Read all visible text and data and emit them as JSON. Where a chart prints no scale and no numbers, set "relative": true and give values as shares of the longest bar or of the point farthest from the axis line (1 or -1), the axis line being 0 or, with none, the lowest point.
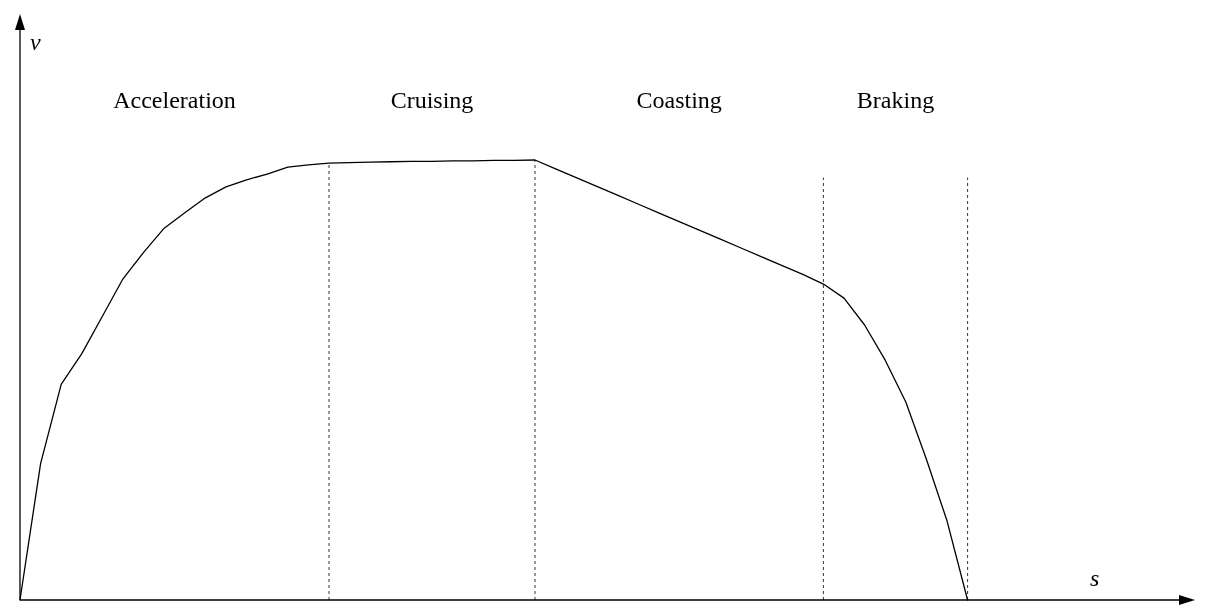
{
  "chart_data": {
    "type": "line",
    "relative": true,
    "xlabel": "s",
    "ylabel": "v",
    "categories": [
      null,
      null,
      null,
      null,
      null,
      null,
      null,
      null,
      null,
      null,
      null,
      null,
      null,
      null,
      null,
      null,
      null,
      null,
      null,
      null,
      null,
      null,
      null,
      null,
      null,
      null,
      null,
      null,
      null,
      null,
      null,
      null,
      null,
      null,
      null,
      null,
      null,
      null,
      null,
      null,
      null,
      null,
      null,
      null,
      null,
      null,
      null,
      null,
      null,
      null,
      null,
      null,
      null,
      null,
      null,
      null,
      null,
      null
    ],
    "series": [
      {
        "color": "#000000",
        "values": [
          0,
          0.31,
          0.49,
          0.56,
          0.645,
          0.73,
          0.79,
          0.845,
          0.88,
          0.914,
          0.939,
          0.955,
          0.968,
          0.984,
          0.989,
          0.993,
          0.994,
          0.995,
          0.996,
          0.997,
          0.997,
          0.998,
          0.998,
          0.999,
          0.999,
          1.0,
          0.98,
          0.96,
          0.94,
          0.92,
          0.9,
          0.88,
          0.86,
          0.84,
          0.82,
          0.8,
          0.78,
          0.76,
          0.74,
          0.718,
          0.686,
          0.625,
          0.545,
          0.45,
          0.32,
          0.18,
          0,
          null,
          null,
          null,
          null,
          null,
          null,
          null,
          null,
          null,
          null,
          null
        ]
      }
    ],
    "annotations": [
      "Acceleration",
      "Cruising",
      "Coasting",
      "Braking"
    ],
    "line_style": "solid",
    "grid": "x"
  }
}
